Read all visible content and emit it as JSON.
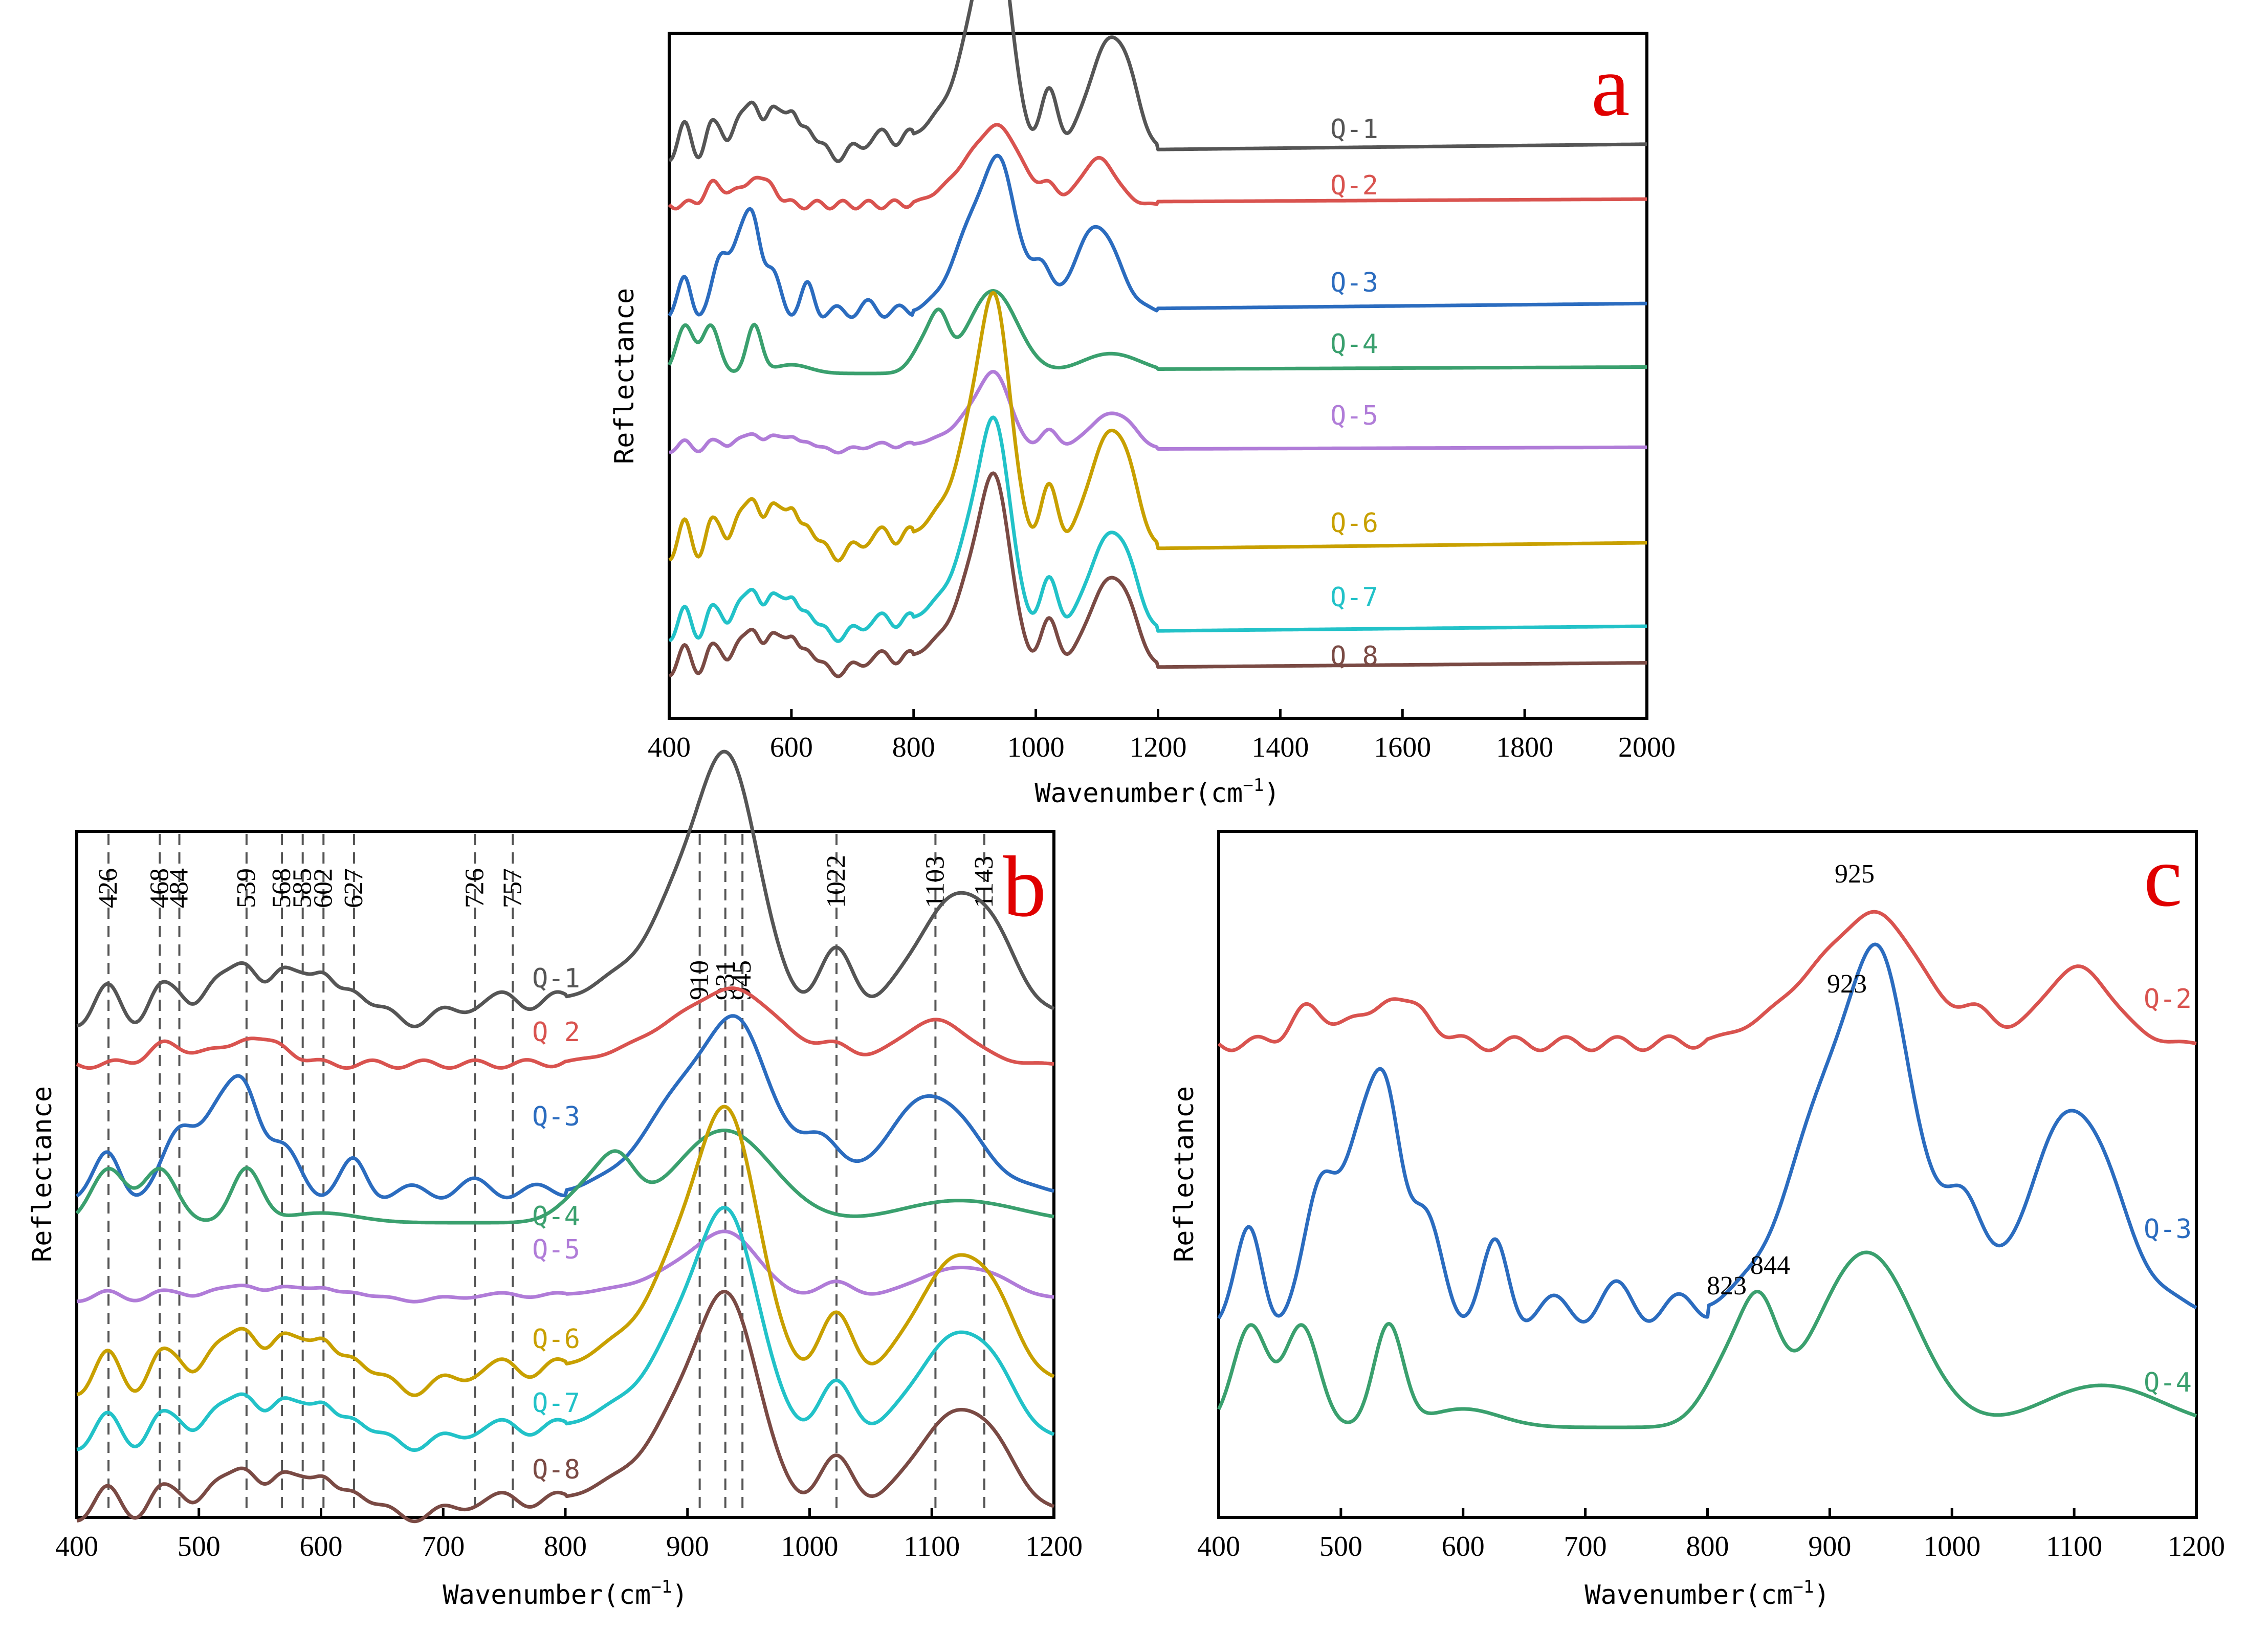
{
  "colors": {
    "Q-1": "#555555",
    "Q-2": "#d9534f",
    "Q-3": "#2b6cbf",
    "Q-4": "#3aa06e",
    "Q-5": "#b07cd8",
    "Q-6": "#c8a000",
    "Q-7": "#22c2c8",
    "Q-8": "#7a4a44",
    "panel_letter": "#e00000"
  },
  "chart_data": [
    {
      "panel": "a",
      "type": "line",
      "xlabel": "Wavenumber(cm-1)",
      "ylabel": "Reflectance",
      "xlim": [
        400,
        2000
      ],
      "x_ticks": [
        "400",
        "600",
        "800",
        "1000",
        "1200",
        "1400",
        "1600",
        "1800",
        "2000"
      ],
      "series_labels": [
        "Q-1",
        "Q-2",
        "Q-3",
        "Q-4",
        "Q-5",
        "Q-6",
        "Q-7",
        "Q 8"
      ],
      "y_values": "relative reflectance (offset, arbitrary units); no y tick labels"
    },
    {
      "panel": "b",
      "type": "line",
      "xlabel": "Wavenumber(cm-1)",
      "ylabel": "Reflectance",
      "xlim": [
        400,
        1200
      ],
      "x_ticks": [
        "400",
        "500",
        "600",
        "700",
        "800",
        "900",
        "1000",
        "1100",
        "1200"
      ],
      "series_labels": [
        "Q-1",
        "Q 2",
        "Q-3",
        "Q-4",
        "Q-5",
        "Q-6",
        "Q-7",
        "Q-8"
      ],
      "peak_lines": [
        426,
        468,
        484,
        539,
        568,
        585,
        602,
        627,
        726,
        757,
        910,
        931,
        945,
        1022,
        1103,
        1143
      ],
      "peak_labels": [
        "426",
        "468",
        "484",
        "539",
        "568",
        "585",
        "602",
        "627",
        "726",
        "757",
        "910",
        "931",
        "945",
        "1022",
        "1103",
        "1143"
      ]
    },
    {
      "panel": "c",
      "type": "line",
      "xlabel": "Wavenumber(cm-1)",
      "ylabel": "Reflectance",
      "xlim": [
        400,
        1200
      ],
      "x_ticks": [
        "400",
        "500",
        "600",
        "700",
        "800",
        "900",
        "1000",
        "1100",
        "1200"
      ],
      "series_labels": [
        "Q-2",
        "Q-3",
        "Q-4"
      ],
      "annotations": [
        {
          "text": "925",
          "series": "Q-2",
          "x": 925
        },
        {
          "text": "923",
          "series": "Q-3",
          "x": 923
        },
        {
          "text": "823",
          "series": "Q-4",
          "x": 823
        },
        {
          "text": "844",
          "series": "Q-4",
          "x": 844
        }
      ]
    }
  ],
  "panel_letters": {
    "a": "a",
    "b": "b",
    "c": "c"
  }
}
